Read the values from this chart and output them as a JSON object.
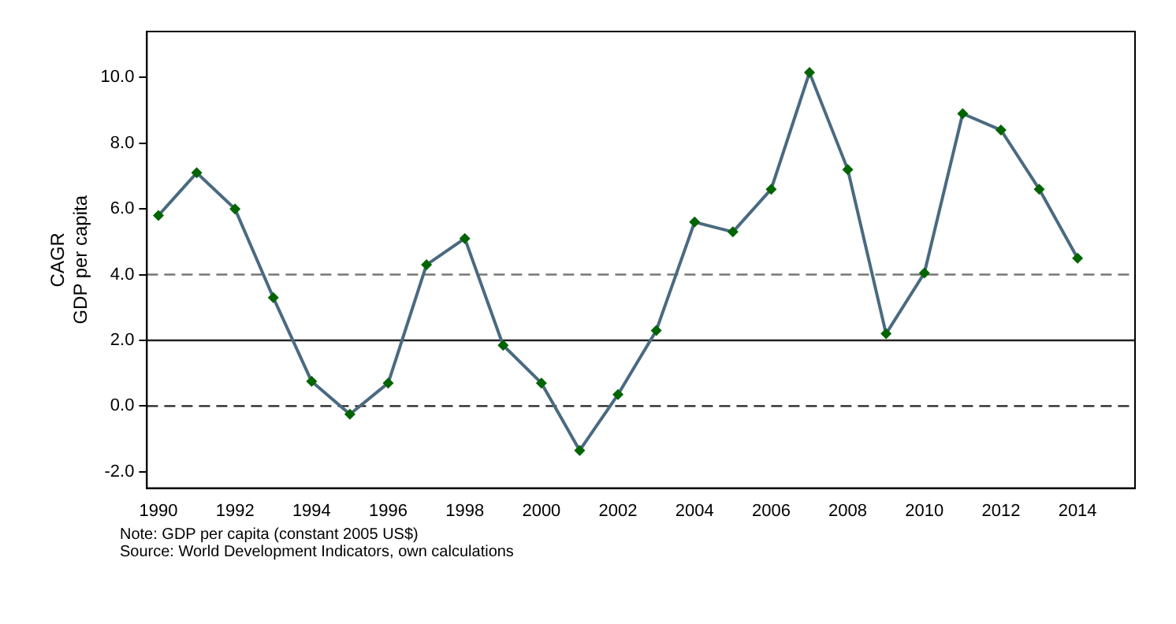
{
  "chart_data": {
    "type": "line",
    "ylabel": "CAGR\nGDP per capita",
    "x": [
      1990,
      1991,
      1992,
      1993,
      1994,
      1995,
      1996,
      1997,
      1998,
      1999,
      2000,
      2001,
      2002,
      2003,
      2004,
      2005,
      2006,
      2007,
      2008,
      2009,
      2010,
      2011,
      2012,
      2013,
      2014
    ],
    "series": [
      {
        "color": "#4a6a80",
        "values": [
          5.8,
          7.1,
          6.0,
          3.3,
          0.75,
          -0.25,
          0.7,
          4.3,
          5.1,
          1.85,
          0.7,
          -1.35,
          0.35,
          2.3,
          5.6,
          5.3,
          6.6,
          10.15,
          7.2,
          2.2,
          4.05,
          8.9,
          8.4,
          6.6,
          4.5
        ]
      }
    ],
    "xlim": [
      1989.7,
      2015.5
    ],
    "xticks": [
      1990,
      1992,
      1994,
      1996,
      1998,
      2000,
      2002,
      2004,
      2006,
      2008,
      2010,
      2012,
      2014
    ],
    "ylim": [
      -2.5,
      11.4
    ],
    "yticks": [
      {
        "value": -2,
        "label": "-2.0"
      },
      {
        "value": 0,
        "label": "0.0"
      },
      {
        "value": 2,
        "label": "2.0"
      },
      {
        "value": 4,
        "label": "4.0"
      },
      {
        "value": 6,
        "label": "6.0"
      },
      {
        "value": 8,
        "label": "8.0"
      },
      {
        "value": 10,
        "label": "10.0"
      }
    ],
    "ref_lines": [
      {
        "axis": "y",
        "value": 4,
        "line_style": "dashed",
        "color": "#777777"
      },
      {
        "axis": "y",
        "value": 2,
        "line_style": "solid",
        "color": "#222222"
      },
      {
        "axis": "y",
        "value": 0,
        "line_style": "dashed",
        "color": "#222222"
      }
    ],
    "marker": "diamond",
    "grid": false,
    "legend": false,
    "annotations": [
      "Note: GDP per capita (constant 2005 US$)",
      "Source: World Development Indicators, own calculations"
    ]
  }
}
